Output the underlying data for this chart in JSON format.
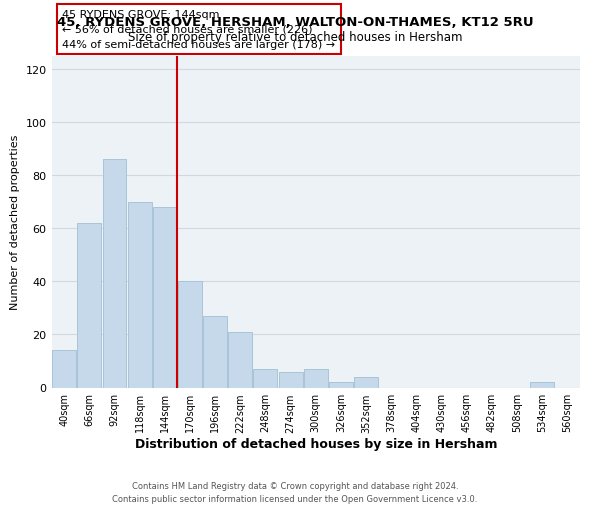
{
  "title": "45, RYDENS GROVE, HERSHAM, WALTON-ON-THAMES, KT12 5RU",
  "subtitle": "Size of property relative to detached houses in Hersham",
  "xlabel": "Distribution of detached houses by size in Hersham",
  "ylabel": "Number of detached properties",
  "bar_color": "#c5d9ea",
  "bar_edge_color": "#aac4d8",
  "categories": [
    "40sqm",
    "66sqm",
    "92sqm",
    "118sqm",
    "144sqm",
    "170sqm",
    "196sqm",
    "222sqm",
    "248sqm",
    "274sqm",
    "300sqm",
    "326sqm",
    "352sqm",
    "378sqm",
    "404sqm",
    "430sqm",
    "456sqm",
    "482sqm",
    "508sqm",
    "534sqm",
    "560sqm"
  ],
  "values": [
    14,
    62,
    86,
    70,
    68,
    40,
    27,
    21,
    7,
    6,
    7,
    2,
    4,
    0,
    0,
    0,
    0,
    0,
    0,
    2,
    0
  ],
  "ylim": [
    0,
    125
  ],
  "yticks": [
    0,
    20,
    40,
    60,
    80,
    100,
    120
  ],
  "vline_color": "#cc0000",
  "annotation_title": "45 RYDENS GROVE: 144sqm",
  "annotation_line1": "← 56% of detached houses are smaller (226)",
  "annotation_line2": "44% of semi-detached houses are larger (178) →",
  "footer_line1": "Contains HM Land Registry data © Crown copyright and database right 2024.",
  "footer_line2": "Contains public sector information licensed under the Open Government Licence v3.0.",
  "grid_color": "#d0d8e4",
  "background_color": "#edf2f7"
}
